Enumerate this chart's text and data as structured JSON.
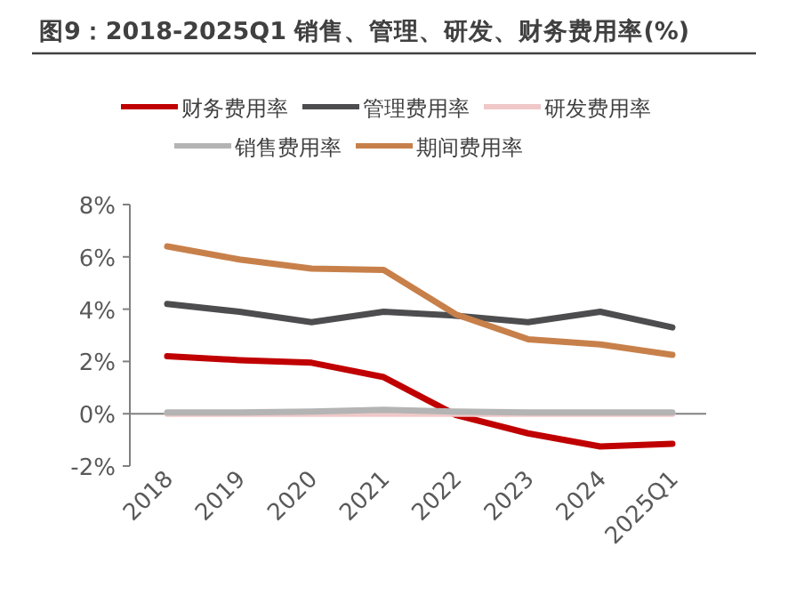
{
  "chart_data": {
    "type": "line",
    "title": "图9：2018-2025Q1 销售、管理、研发、财务费用率(%)",
    "categories": [
      "2018",
      "2019",
      "2020",
      "2021",
      "2022",
      "2023",
      "2024",
      "2025Q1"
    ],
    "series": [
      {
        "name": "财务费用率",
        "color": "#c00000",
        "values": [
          2.2,
          2.05,
          1.95,
          1.4,
          -0.05,
          -0.75,
          -1.25,
          -1.15
        ]
      },
      {
        "name": "管理费用率",
        "color": "#4d4d4f",
        "values": [
          4.2,
          3.9,
          3.5,
          3.9,
          3.75,
          3.5,
          3.9,
          3.3
        ]
      },
      {
        "name": "研发费用率",
        "color": "#f0c8c8",
        "values": [
          0.0,
          0.0,
          0.0,
          0.0,
          0.0,
          0.0,
          0.0,
          0.0
        ]
      },
      {
        "name": "销售费用率",
        "color": "#b4b4b4",
        "values": [
          0.05,
          0.05,
          0.08,
          0.15,
          0.08,
          0.05,
          0.05,
          0.05
        ]
      },
      {
        "name": "期间费用率",
        "color": "#c8804a",
        "values": [
          6.4,
          5.9,
          5.55,
          5.5,
          3.8,
          2.85,
          2.65,
          2.25
        ]
      }
    ],
    "ylim": [
      -2,
      8
    ],
    "yticks": [
      {
        "value": -2,
        "label": "-2%"
      },
      {
        "value": 0,
        "label": "0%"
      },
      {
        "value": 2,
        "label": "2%"
      },
      {
        "value": 4,
        "label": "4%"
      },
      {
        "value": 6,
        "label": "6%"
      },
      {
        "value": 8,
        "label": "8%"
      }
    ],
    "grid": false,
    "legend": "top",
    "marker": "none",
    "line_style": "solid"
  }
}
